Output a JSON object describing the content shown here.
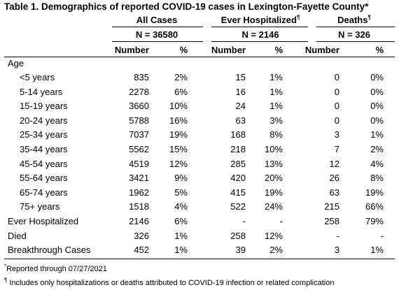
{
  "table": {
    "title": "Table 1. Demographics of reported COVID-19 cases in Lexington-Fayette County*",
    "groups": [
      {
        "label": "All Cases",
        "mark": "",
        "n": "N = 36580"
      },
      {
        "label": "Ever Hospitalized",
        "mark": "¶",
        "n": "N = 2146"
      },
      {
        "label": "Deaths",
        "mark": "¶",
        "n": "N = 326"
      }
    ],
    "subheaders": [
      "Number",
      "%",
      "Number",
      "%",
      "Number",
      "%"
    ],
    "section_label": "Age",
    "rows": [
      {
        "label": "<5 years",
        "values": [
          "835",
          "2%",
          "15",
          "1%",
          "0",
          "0%"
        ]
      },
      {
        "label": "5-14 years",
        "values": [
          "2278",
          "6%",
          "16",
          "1%",
          "0",
          "0%"
        ]
      },
      {
        "label": "15-19 years",
        "values": [
          "3660",
          "10%",
          "24",
          "1%",
          "0",
          "0%"
        ]
      },
      {
        "label": "20-24 years",
        "values": [
          "5788",
          "16%",
          "63",
          "3%",
          "0",
          "0%"
        ]
      },
      {
        "label": "25-34 years",
        "values": [
          "7037",
          "19%",
          "168",
          "8%",
          "3",
          "1%"
        ]
      },
      {
        "label": "35-44 years",
        "values": [
          "5562",
          "15%",
          "218",
          "10%",
          "7",
          "2%"
        ]
      },
      {
        "label": "45-54 years",
        "values": [
          "4519",
          "12%",
          "285",
          "13%",
          "12",
          "4%"
        ]
      },
      {
        "label": "55-64 years",
        "values": [
          "3421",
          "9%",
          "420",
          "20%",
          "26",
          "8%"
        ]
      },
      {
        "label": "65-74 years",
        "values": [
          "1962",
          "5%",
          "415",
          "19%",
          "63",
          "19%"
        ]
      },
      {
        "label": "75+ years",
        "values": [
          "1518",
          "4%",
          "522",
          "24%",
          "215",
          "66%"
        ]
      },
      {
        "label": "Ever Hospitalized",
        "values": [
          "2146",
          "6%",
          "-",
          "-",
          "258",
          "79%"
        ]
      },
      {
        "label": "Died",
        "values": [
          "326",
          "1%",
          "258",
          "12%",
          "-",
          "-"
        ]
      },
      {
        "label": "Breakthrough Cases",
        "values": [
          "452",
          "1%",
          "39",
          "2%",
          "3",
          "1%"
        ]
      }
    ],
    "footnotes": [
      {
        "mark": "*",
        "text": "Reported through 07/27/2021"
      },
      {
        "mark": "¶",
        "text": " Includes only hospitalizations or deaths attributed to COVID-19 infection or related complication"
      }
    ]
  }
}
